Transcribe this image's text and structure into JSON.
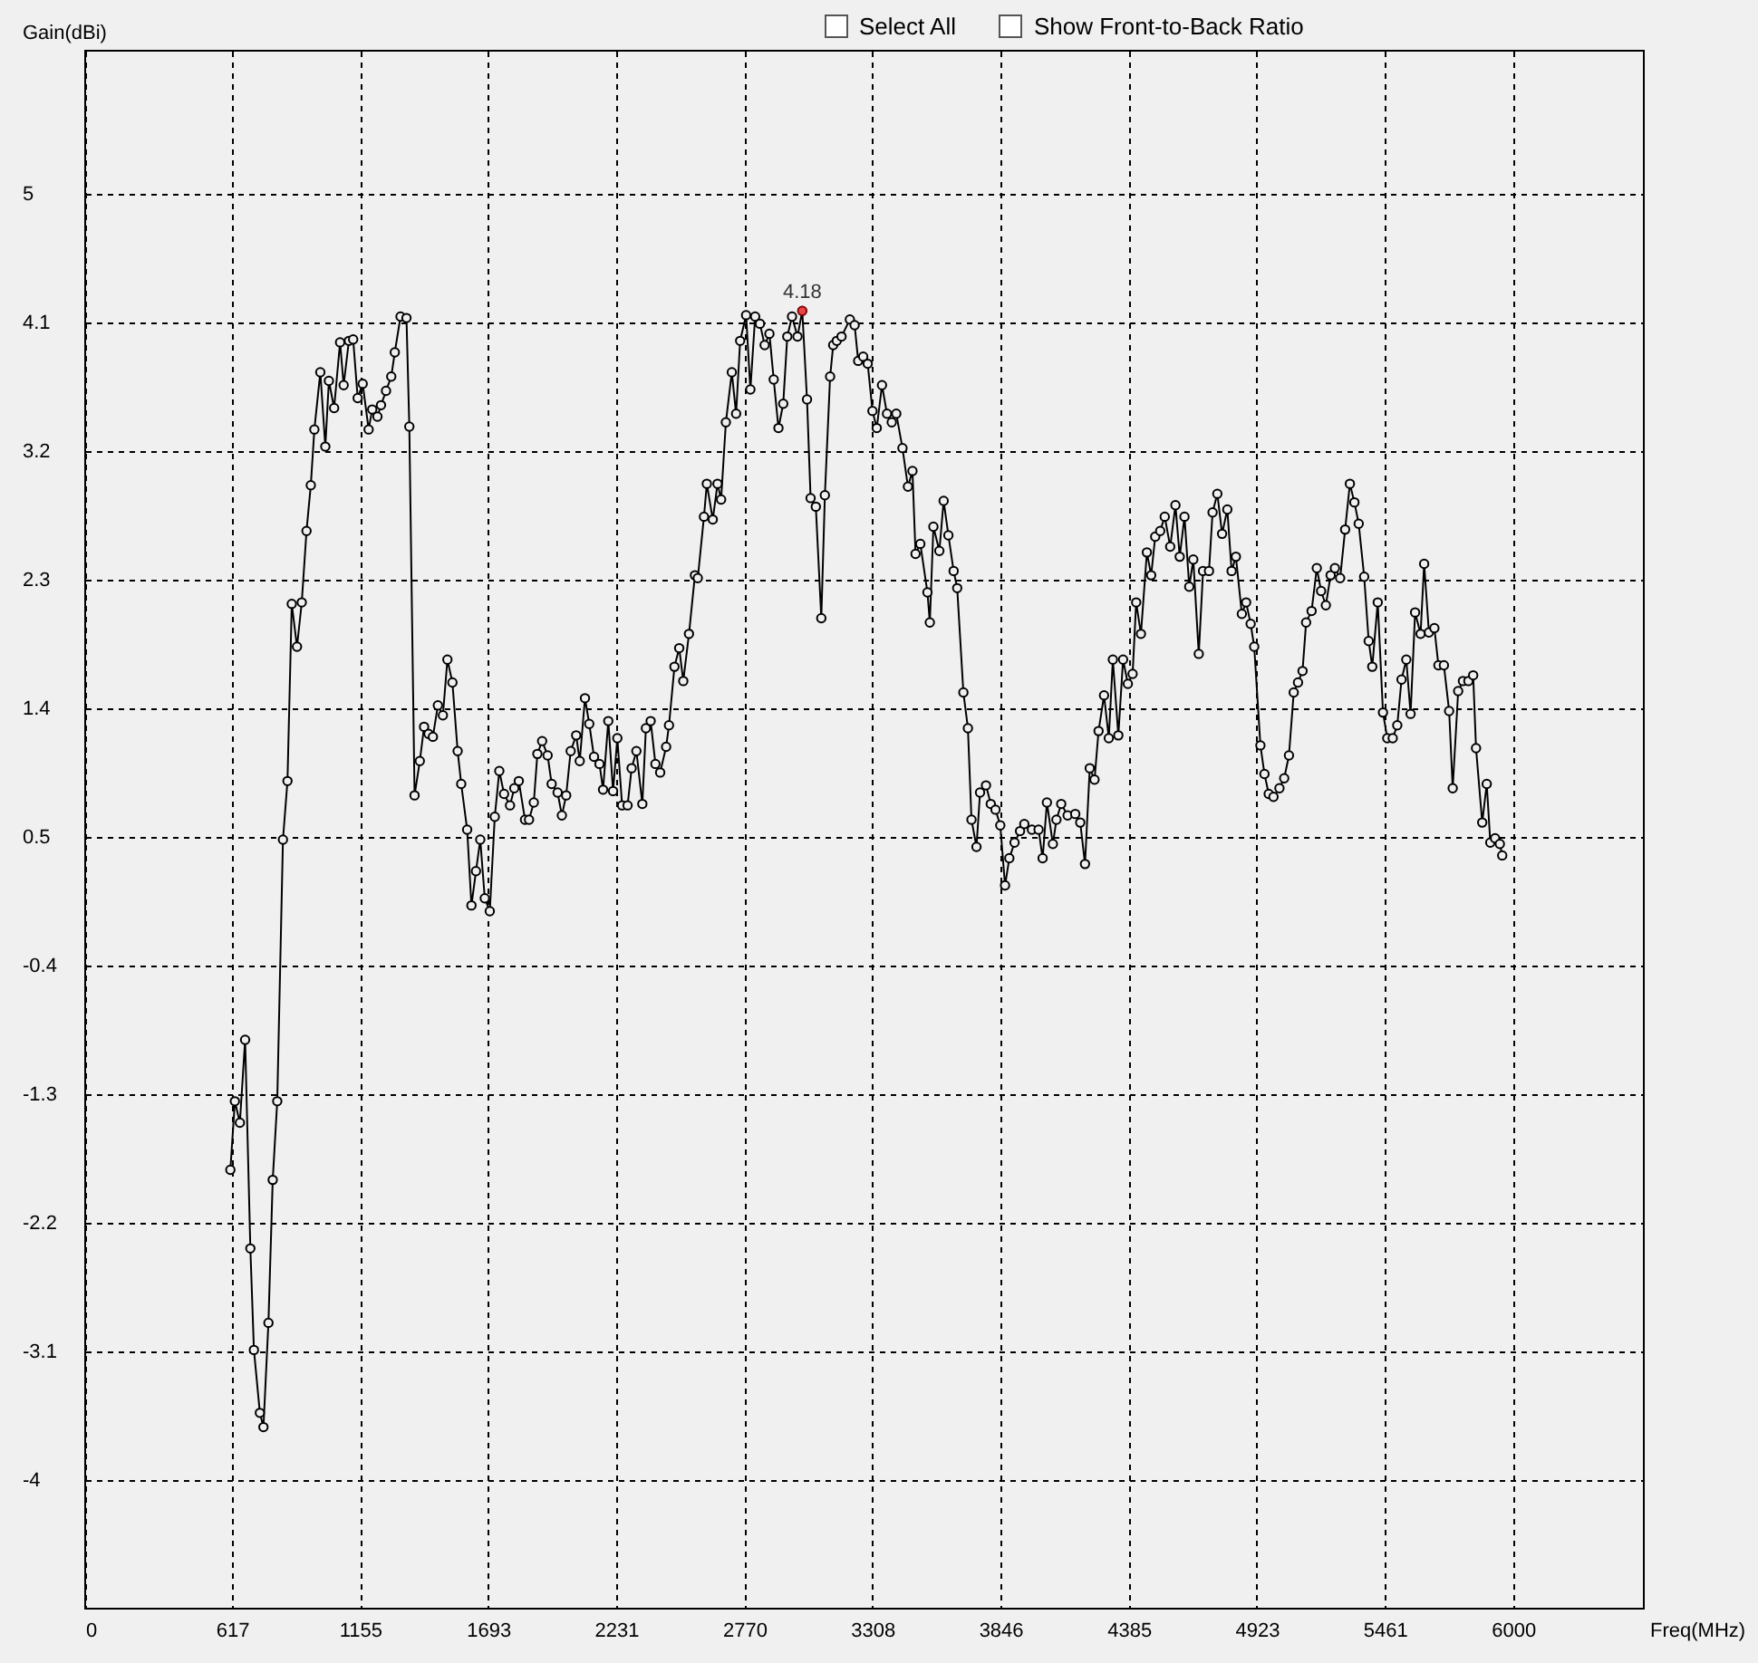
{
  "chart_data": {
    "type": "line",
    "xlabel": "Freq(MHz)",
    "ylabel": "Gain(dBi)",
    "xlim": [
      0,
      6549
    ],
    "xticks": [
      0,
      617,
      1155,
      1693,
      2231,
      2770,
      3308,
      3846,
      4385,
      4923,
      5461,
      6000
    ],
    "ylim": [
      -4.9,
      6
    ],
    "yticks": [
      -4,
      -3.1,
      -2.2,
      -1.3,
      -0.4,
      0.5,
      1.4,
      2.3,
      3.2,
      4.1,
      5
    ],
    "grid": true,
    "marker": "circle",
    "line_style": "solid",
    "annotations": [
      "Select All",
      "Show Front-to-Back Ratio",
      {
        "text": "4.18",
        "x": 3013,
        "y": 4.18
      }
    ],
    "x": [
      610,
      629,
      650,
      672,
      694,
      709,
      734,
      749,
      770,
      788,
      807,
      831,
      850,
      868,
      890,
      910,
      930,
      948,
      963,
      988,
      1009,
      1024,
      1046,
      1071,
      1086,
      1108,
      1126,
      1145,
      1166,
      1191,
      1206,
      1228,
      1243,
      1264,
      1286,
      1301,
      1325,
      1350,
      1362,
      1384,
      1406,
      1424,
      1443,
      1461,
      1482,
      1503,
      1522,
      1543,
      1565,
      1580,
      1605,
      1623,
      1642,
      1660,
      1679,
      1700,
      1721,
      1740,
      1760,
      1785,
      1803,
      1822,
      1848,
      1865,
      1885,
      1900,
      1920,
      1943,
      1960,
      1985,
      2003,
      2021,
      2040,
      2063,
      2078,
      2100,
      2118,
      2138,
      2161,
      2176,
      2198,
      2218,
      2236,
      2256,
      2279,
      2296,
      2316,
      2341,
      2356,
      2376,
      2396,
      2416,
      2441,
      2453,
      2476,
      2496,
      2513,
      2537,
      2562,
      2574,
      2600,
      2612,
      2637,
      2657,
      2672,
      2692,
      2717,
      2735,
      2752,
      2777,
      2795,
      2815,
      2835,
      2855,
      2875,
      2893,
      2913,
      2933,
      2950,
      2970,
      2993,
      3013,
      3033,
      3048,
      3070,
      3093,
      3108,
      3130,
      3143,
      3158,
      3178,
      3213,
      3233,
      3248,
      3269,
      3288,
      3308,
      3326,
      3348,
      3369,
      3389,
      3408,
      3434,
      3457,
      3476,
      3489,
      3509,
      3539,
      3549,
      3564,
      3589,
      3607,
      3627,
      3649,
      3664,
      3690,
      3709,
      3724,
      3745,
      3760,
      3785,
      3805,
      3825,
      3845,
      3865,
      3883,
      3905,
      3928,
      3946,
      3978,
      4006,
      4023,
      4041,
      4066,
      4081,
      4101,
      4128,
      4160,
      4181,
      4201,
      4221,
      4241,
      4258,
      4281,
      4301,
      4318,
      4341,
      4361,
      4381,
      4401,
      4416,
      4436,
      4461,
      4479,
      4496,
      4517,
      4536,
      4559,
      4581,
      4599,
      4619,
      4639,
      4656,
      4679,
      4697,
      4722,
      4737,
      4757,
      4777,
      4799,
      4817,
      4835,
      4860,
      4878,
      4897,
      4912,
      4938,
      4955,
      4973,
      4993,
      5018,
      5038,
      5058,
      5078,
      5096,
      5115,
      5130,
      5153,
      5175,
      5193,
      5213,
      5233,
      5251,
      5273,
      5294,
      5314,
      5333,
      5351,
      5374,
      5393,
      5408,
      5431,
      5453,
      5471,
      5494,
      5513,
      5531,
      5551,
      5569,
      5588,
      5611,
      5626,
      5646,
      5669,
      5686,
      5709,
      5731,
      5746,
      5769,
      5789,
      5812,
      5832,
      5844,
      5870,
      5889,
      5904,
      5924,
      5944,
      5954
    ],
    "series": [
      {
        "color": "#000000",
        "values": [
          -1.83,
          -1.35,
          -1.5,
          -0.92,
          -2.38,
          -3.09,
          -3.53,
          -3.63,
          -2.9,
          -1.9,
          -1.35,
          0.48,
          0.89,
          2.13,
          1.83,
          2.14,
          2.64,
          2.96,
          3.35,
          3.75,
          3.23,
          3.69,
          3.5,
          3.96,
          3.66,
          3.97,
          3.98,
          3.57,
          3.67,
          3.35,
          3.49,
          3.44,
          3.52,
          3.62,
          3.72,
          3.89,
          4.14,
          4.13,
          3.37,
          0.79,
          1.03,
          1.27,
          1.22,
          1.2,
          1.42,
          1.35,
          1.74,
          1.58,
          1.1,
          0.87,
          0.55,
          0.02,
          0.26,
          0.48,
          0.07,
          -0.02,
          0.64,
          0.96,
          0.8,
          0.72,
          0.84,
          0.89,
          0.62,
          0.62,
          0.74,
          1.08,
          1.17,
          1.07,
          0.87,
          0.81,
          0.65,
          0.79,
          1.1,
          1.21,
          1.03,
          1.47,
          1.29,
          1.06,
          1.01,
          0.83,
          1.31,
          0.82,
          1.19,
          0.72,
          0.72,
          0.98,
          1.1,
          0.73,
          1.26,
          1.31,
          1.01,
          0.95,
          1.13,
          1.28,
          1.69,
          1.82,
          1.59,
          1.92,
          2.33,
          2.31,
          2.74,
          2.97,
          2.72,
          2.97,
          2.86,
          3.4,
          3.75,
          3.46,
          3.97,
          4.15,
          3.63,
          4.14,
          4.09,
          3.94,
          4.02,
          3.7,
          3.36,
          3.53,
          4.0,
          4.14,
          4.0,
          4.18,
          3.56,
          2.87,
          2.81,
          2.03,
          2.89,
          3.72,
          3.94,
          3.97,
          4.0,
          4.12,
          4.08,
          3.83,
          3.86,
          3.81,
          3.48,
          3.36,
          3.66,
          3.46,
          3.4,
          3.46,
          3.22,
          2.95,
          3.06,
          2.48,
          2.55,
          2.21,
          2.0,
          2.67,
          2.5,
          2.85,
          2.61,
          2.36,
          2.24,
          1.51,
          1.26,
          0.62,
          0.43,
          0.81,
          0.86,
          0.73,
          0.69,
          0.58,
          0.16,
          0.35,
          0.46,
          0.54,
          0.59,
          0.55,
          0.55,
          0.35,
          0.74,
          0.45,
          0.62,
          0.73,
          0.65,
          0.66,
          0.6,
          0.31,
          0.98,
          0.9,
          1.24,
          1.49,
          1.19,
          1.74,
          1.21,
          1.74,
          1.57,
          1.64,
          2.14,
          1.92,
          2.49,
          2.33,
          2.6,
          2.64,
          2.74,
          2.53,
          2.82,
          2.46,
          2.74,
          2.25,
          2.44,
          1.78,
          2.36,
          2.36,
          2.77,
          2.9,
          2.62,
          2.79,
          2.36,
          2.46,
          2.06,
          2.14,
          1.99,
          1.83,
          1.14,
          0.94,
          0.8,
          0.78,
          0.84,
          0.91,
          1.07,
          1.51,
          1.58,
          1.66,
          2.0,
          2.08,
          2.38,
          2.22,
          2.12,
          2.33,
          2.38,
          2.31,
          2.65,
          2.97,
          2.84,
          2.69,
          2.32,
          1.87,
          1.69,
          2.14,
          1.37,
          1.19,
          1.19,
          1.28,
          1.6,
          1.74,
          1.36,
          2.07,
          1.92,
          2.41,
          1.93,
          1.96,
          1.7,
          1.7,
          1.38,
          0.84,
          1.52,
          1.59,
          1.59,
          1.63,
          1.12,
          0.6,
          0.87,
          0.46,
          0.49,
          0.45,
          0.37
        ]
      }
    ]
  }
}
